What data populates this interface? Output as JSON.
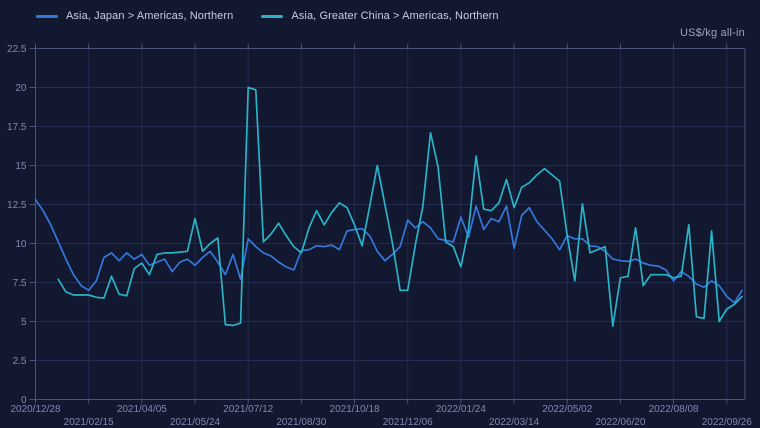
{
  "chart": {
    "unit_label": "US$/kg all-in"
  },
  "legend": {
    "items": [
      {
        "label": "Asia, Japan > Americas, Northern",
        "color": "#3577dd"
      },
      {
        "label": "Asia, Greater China > Americas, Northern",
        "color": "#2ab3c6"
      }
    ]
  },
  "colors": {
    "background": "#111830",
    "gridline": "#232b4e",
    "axis_border": "#4a5378",
    "tick": "#4a5378",
    "axis_label": "#8089ad",
    "legend_text": "#c6cde2",
    "unit_text": "#9aa3c0",
    "series_blue": "#3577dd",
    "series_teal": "#2ab3c6"
  },
  "chart_data": {
    "type": "line",
    "title": "",
    "unit": "US$/kg all-in",
    "grid": true,
    "legend_position": "top-left",
    "x": {
      "start_date": "2020/12/28",
      "interval": "weekly",
      "ticks_every_weeks": 7,
      "total_weeks_span": 93.4,
      "tick_labels": [
        "2020/12/28",
        "2021/02/15",
        "2021/04/05",
        "2021/05/24",
        "2021/07/12",
        "2021/08/30",
        "2021/10/18",
        "2021/12/06",
        "2022/01/24",
        "2022/03/14",
        "2022/05/02",
        "2022/06/20",
        "2022/08/08",
        "2022/09/26"
      ]
    },
    "y": {
      "min": 0,
      "max": 22.5,
      "step": 2.5,
      "tick_labels": [
        "0",
        "2.5",
        "5",
        "7.5",
        "10",
        "12.5",
        "15",
        "17.5",
        "20",
        "22.5"
      ]
    },
    "series": [
      {
        "name": "Asia, Japan > Americas, Northern",
        "color": "#3577dd",
        "values": [
          12.8,
          12.1,
          11.2,
          10.1,
          9.0,
          8.0,
          7.3,
          7.0,
          7.6,
          9.1,
          9.4,
          8.9,
          9.4,
          9.0,
          9.3,
          8.6,
          8.8,
          9.0,
          8.2,
          8.8,
          9.0,
          8.6,
          9.1,
          9.5,
          8.8,
          8.0,
          9.3,
          7.7,
          10.3,
          9.8,
          9.4,
          9.2,
          8.8,
          8.5,
          8.3,
          9.55,
          9.6,
          9.85,
          9.8,
          9.9,
          9.6,
          10.8,
          10.9,
          10.95,
          10.5,
          9.5,
          8.9,
          9.3,
          9.8,
          11.5,
          11.0,
          11.4,
          11.0,
          10.3,
          10.2,
          10.1,
          11.7,
          10.4,
          12.4,
          10.9,
          11.6,
          11.4,
          12.4,
          9.7,
          11.8,
          12.3,
          11.4,
          10.85,
          10.3,
          9.6,
          10.5,
          10.3,
          10.3,
          9.85,
          9.8,
          9.5,
          9.0,
          8.9,
          8.85,
          9.0,
          8.75,
          8.6,
          8.55,
          8.3,
          7.6,
          8.2,
          7.9,
          7.4,
          7.2,
          7.6,
          7.3,
          6.6,
          6.2,
          7.0
        ]
      },
      {
        "name": "Asia, Greater China > Americas, Northern",
        "color": "#2ab3c6",
        "values": [
          null,
          null,
          null,
          7.7,
          6.9,
          6.7,
          6.7,
          6.7,
          6.55,
          6.5,
          7.9,
          6.75,
          6.65,
          8.4,
          8.75,
          8.0,
          9.3,
          9.4,
          9.4,
          9.45,
          9.5,
          11.6,
          9.5,
          10.0,
          10.35,
          4.8,
          4.75,
          4.9,
          20.0,
          19.85,
          10.1,
          10.6,
          11.3,
          10.5,
          9.8,
          9.4,
          11.0,
          12.1,
          11.2,
          12.0,
          12.6,
          12.3,
          11.2,
          9.85,
          12.4,
          15.0,
          12.5,
          10.0,
          7.0,
          7.0,
          9.9,
          12.4,
          17.1,
          14.9,
          10.1,
          9.8,
          8.5,
          10.9,
          15.6,
          12.2,
          12.1,
          12.6,
          14.1,
          12.3,
          13.6,
          13.9,
          14.4,
          14.8,
          14.4,
          14.0,
          10.5,
          7.6,
          12.55,
          9.4,
          9.6,
          9.8,
          4.7,
          7.8,
          7.9,
          11.0,
          7.3,
          8.0,
          8.0,
          8.0,
          7.8,
          7.9,
          11.2,
          5.3,
          5.2,
          10.8,
          5.0,
          5.8,
          6.1,
          6.6
        ]
      }
    ]
  }
}
